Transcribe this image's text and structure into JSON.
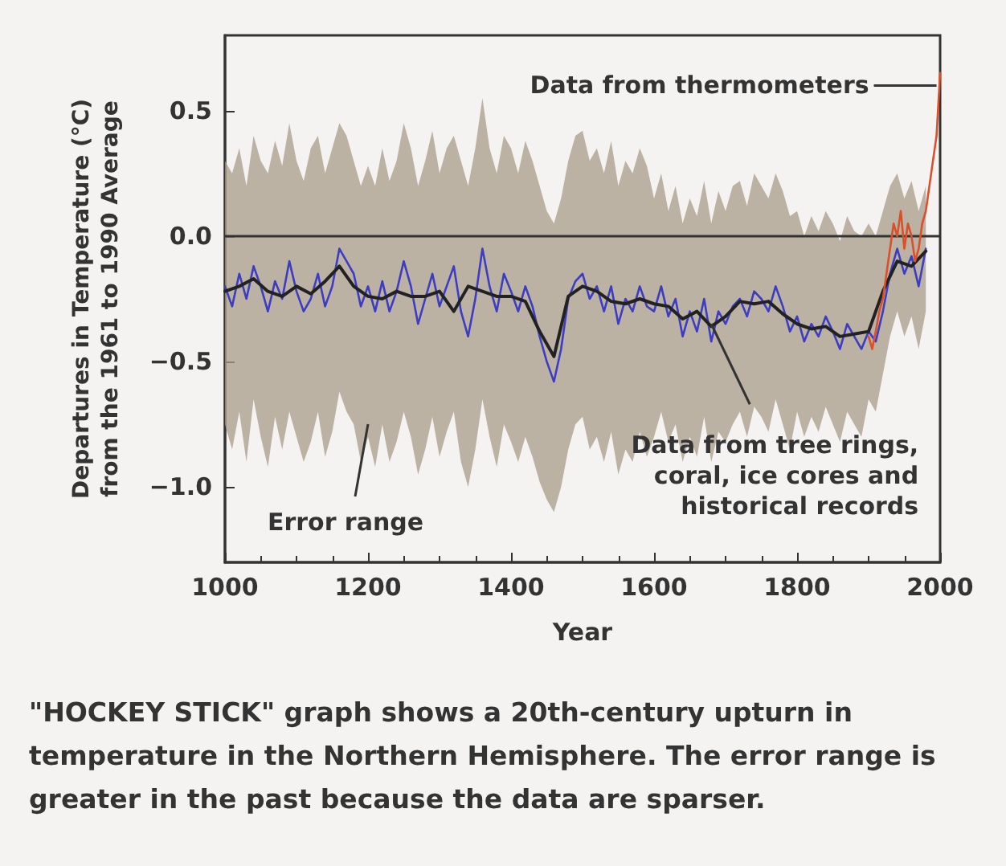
{
  "chart_data": {
    "type": "line",
    "xlabel": "Year",
    "ylabel": "Departures in Temperature (°C)\nfrom the 1961 to 1990 Average",
    "xlim": [
      1000,
      2000
    ],
    "xticks": [
      1000,
      1200,
      1400,
      1600,
      1800,
      2000
    ],
    "ylim": [
      -1.3,
      0.8
    ],
    "yticks": [
      {
        "value": -1,
        "label": "−1.0"
      },
      {
        "value": -0.5,
        "label": "−0.5"
      },
      {
        "value": 0,
        "label": "0.0"
      },
      {
        "value": 0.5,
        "label": "0.5"
      }
    ],
    "grid": false,
    "marker": "none",
    "line_style": "solid",
    "ref_lines": [
      {
        "axis": "y",
        "value": 0,
        "color": "#333333"
      }
    ],
    "annotations": [
      {
        "text": "Data from thermometers",
        "x": 1995,
        "y": 0.6
      },
      {
        "text": "Data from tree rings,\ncoral, ice cores and\nhistorical records",
        "x": 1680,
        "y": -0.35
      },
      "Error range",
      "\"HOCKEY STICK\" graph shows a 20th-century upturn in temperature in the Northern Hemisphere. The error range is greater in the past because the data are sparser."
    ],
    "series": [
      {
        "color": "#3d3dc4",
        "x": [
          1000,
          1010,
          1020,
          1030,
          1040,
          1050,
          1060,
          1070,
          1080,
          1090,
          1100,
          1110,
          1120,
          1130,
          1140,
          1150,
          1160,
          1170,
          1180,
          1190,
          1200,
          1210,
          1220,
          1230,
          1240,
          1250,
          1260,
          1270,
          1280,
          1290,
          1300,
          1310,
          1320,
          1330,
          1340,
          1350,
          1360,
          1370,
          1380,
          1390,
          1400,
          1410,
          1420,
          1430,
          1440,
          1450,
          1460,
          1470,
          1480,
          1490,
          1500,
          1510,
          1520,
          1530,
          1540,
          1550,
          1560,
          1570,
          1580,
          1590,
          1600,
          1610,
          1620,
          1630,
          1640,
          1650,
          1660,
          1670,
          1680,
          1690,
          1700,
          1710,
          1720,
          1730,
          1740,
          1750,
          1760,
          1770,
          1780,
          1790,
          1800,
          1810,
          1820,
          1830,
          1840,
          1850,
          1860,
          1870,
          1880,
          1890,
          1900,
          1910,
          1920,
          1930,
          1940,
          1950,
          1960,
          1970,
          1980
        ],
        "values": [
          -0.2,
          -0.28,
          -0.15,
          -0.25,
          -0.12,
          -0.2,
          -0.3,
          -0.18,
          -0.25,
          -0.1,
          -0.22,
          -0.3,
          -0.25,
          -0.15,
          -0.28,
          -0.2,
          -0.05,
          -0.1,
          -0.15,
          -0.28,
          -0.2,
          -0.3,
          -0.18,
          -0.3,
          -0.22,
          -0.1,
          -0.2,
          -0.35,
          -0.25,
          -0.15,
          -0.28,
          -0.2,
          -0.12,
          -0.3,
          -0.4,
          -0.25,
          -0.05,
          -0.2,
          -0.3,
          -0.15,
          -0.22,
          -0.3,
          -0.2,
          -0.28,
          -0.4,
          -0.5,
          -0.58,
          -0.45,
          -0.25,
          -0.18,
          -0.15,
          -0.25,
          -0.2,
          -0.3,
          -0.2,
          -0.35,
          -0.25,
          -0.3,
          -0.2,
          -0.28,
          -0.3,
          -0.2,
          -0.32,
          -0.25,
          -0.4,
          -0.3,
          -0.38,
          -0.25,
          -0.42,
          -0.3,
          -0.35,
          -0.28,
          -0.25,
          -0.32,
          -0.22,
          -0.25,
          -0.3,
          -0.2,
          -0.28,
          -0.38,
          -0.32,
          -0.42,
          -0.35,
          -0.4,
          -0.32,
          -0.38,
          -0.45,
          -0.35,
          -0.4,
          -0.45,
          -0.38,
          -0.42,
          -0.3,
          -0.15,
          -0.05,
          -0.15,
          -0.08,
          -0.2,
          -0.05
        ],
        "upper": [
          0.3,
          0.25,
          0.35,
          0.2,
          0.4,
          0.3,
          0.25,
          0.38,
          0.28,
          0.45,
          0.3,
          0.22,
          0.35,
          0.4,
          0.25,
          0.35,
          0.45,
          0.4,
          0.3,
          0.2,
          0.28,
          0.2,
          0.35,
          0.22,
          0.3,
          0.45,
          0.35,
          0.2,
          0.3,
          0.42,
          0.25,
          0.35,
          0.4,
          0.3,
          0.2,
          0.35,
          0.55,
          0.35,
          0.25,
          0.4,
          0.35,
          0.25,
          0.38,
          0.3,
          0.2,
          0.1,
          0.05,
          0.15,
          0.3,
          0.4,
          0.42,
          0.3,
          0.35,
          0.25,
          0.38,
          0.2,
          0.3,
          0.25,
          0.35,
          0.28,
          0.15,
          0.25,
          0.1,
          0.2,
          0.05,
          0.15,
          0.08,
          0.22,
          0.05,
          0.18,
          0.1,
          0.2,
          0.22,
          0.12,
          0.25,
          0.2,
          0.15,
          0.25,
          0.18,
          0.08,
          0.1,
          0.0,
          0.08,
          0.02,
          0.1,
          0.05,
          -0.02,
          0.08,
          0.02,
          0.0,
          0.05,
          0.0,
          0.1,
          0.2,
          0.25,
          0.15,
          0.22,
          0.1,
          0.2
        ],
        "lower": [
          -0.75,
          -0.85,
          -0.7,
          -0.9,
          -0.65,
          -0.8,
          -0.92,
          -0.72,
          -0.85,
          -0.7,
          -0.8,
          -0.9,
          -0.82,
          -0.7,
          -0.88,
          -0.78,
          -0.62,
          -0.7,
          -0.75,
          -0.9,
          -0.8,
          -0.92,
          -0.75,
          -0.9,
          -0.82,
          -0.7,
          -0.8,
          -0.95,
          -0.85,
          -0.72,
          -0.88,
          -0.78,
          -0.7,
          -0.9,
          -1.0,
          -0.85,
          -0.65,
          -0.8,
          -0.92,
          -0.75,
          -0.82,
          -0.9,
          -0.8,
          -0.88,
          -0.98,
          -1.05,
          -1.1,
          -1.0,
          -0.85,
          -0.75,
          -0.72,
          -0.85,
          -0.8,
          -0.9,
          -0.78,
          -0.95,
          -0.85,
          -0.9,
          -0.78,
          -0.88,
          -0.8,
          -0.7,
          -0.82,
          -0.75,
          -0.9,
          -0.8,
          -0.88,
          -0.72,
          -0.9,
          -0.78,
          -0.82,
          -0.75,
          -0.7,
          -0.8,
          -0.68,
          -0.72,
          -0.78,
          -0.65,
          -0.75,
          -0.85,
          -0.7,
          -0.8,
          -0.72,
          -0.78,
          -0.68,
          -0.75,
          -0.82,
          -0.7,
          -0.75,
          -0.8,
          -0.65,
          -0.7,
          -0.55,
          -0.4,
          -0.3,
          -0.4,
          -0.32,
          -0.45,
          -0.3
        ]
      },
      {
        "color": "#222222",
        "x": [
          1000,
          1020,
          1040,
          1060,
          1080,
          1100,
          1120,
          1140,
          1160,
          1180,
          1200,
          1220,
          1240,
          1260,
          1280,
          1300,
          1320,
          1340,
          1360,
          1380,
          1400,
          1420,
          1440,
          1460,
          1480,
          1500,
          1520,
          1540,
          1560,
          1580,
          1600,
          1620,
          1640,
          1660,
          1680,
          1700,
          1720,
          1740,
          1760,
          1780,
          1800,
          1820,
          1840,
          1860,
          1880,
          1900,
          1920,
          1940,
          1960,
          1980
        ],
        "values": [
          -0.22,
          -0.2,
          -0.17,
          -0.22,
          -0.24,
          -0.2,
          -0.23,
          -0.18,
          -0.12,
          -0.2,
          -0.24,
          -0.25,
          -0.22,
          -0.24,
          -0.24,
          -0.22,
          -0.3,
          -0.2,
          -0.22,
          -0.24,
          -0.24,
          -0.26,
          -0.38,
          -0.48,
          -0.24,
          -0.2,
          -0.22,
          -0.26,
          -0.27,
          -0.25,
          -0.27,
          -0.28,
          -0.33,
          -0.3,
          -0.36,
          -0.32,
          -0.26,
          -0.27,
          -0.26,
          -0.31,
          -0.35,
          -0.37,
          -0.36,
          -0.4,
          -0.39,
          -0.38,
          -0.22,
          -0.1,
          -0.12,
          -0.06
        ]
      },
      {
        "color": "#d9502a",
        "x": [
          1900,
          1905,
          1910,
          1915,
          1920,
          1925,
          1930,
          1935,
          1940,
          1945,
          1950,
          1955,
          1960,
          1965,
          1970,
          1975,
          1980,
          1985,
          1990,
          1995,
          2000
        ],
        "values": [
          -0.4,
          -0.45,
          -0.38,
          -0.3,
          -0.25,
          -0.15,
          -0.05,
          0.05,
          0.0,
          0.1,
          -0.05,
          0.05,
          0.0,
          -0.1,
          -0.05,
          0.05,
          0.1,
          0.2,
          0.3,
          0.4,
          0.65
        ]
      }
    ]
  }
}
